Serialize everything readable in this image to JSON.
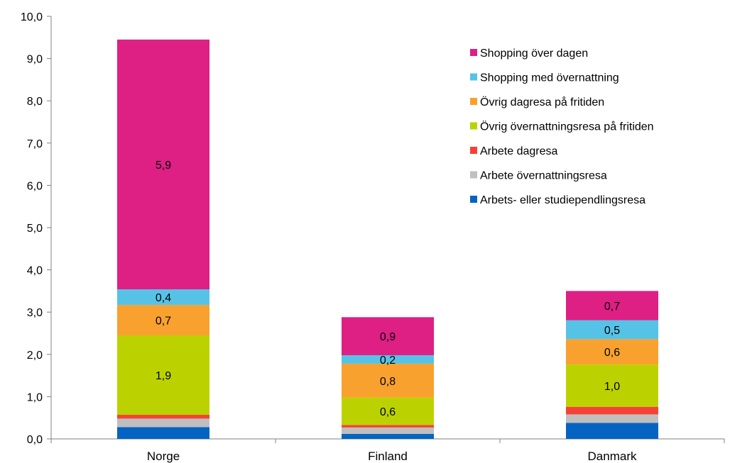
{
  "chart_data": {
    "type": "bar",
    "stacked": true,
    "categories": [
      "Norge",
      "Finland",
      "Danmark"
    ],
    "ylim": [
      0,
      10
    ],
    "yticks": [
      "0,0",
      "1,0",
      "2,0",
      "3,0",
      "4,0",
      "5,0",
      "6,0",
      "7,0",
      "8,0",
      "9,0",
      "10,0"
    ],
    "grid": false,
    "legend_position": "top-right",
    "series": [
      {
        "name": "Arbets- eller studiependlingsresa",
        "color": "#0563c1",
        "values": [
          0.28,
          0.12,
          0.38
        ],
        "labels": [
          "",
          "",
          ""
        ]
      },
      {
        "name": "Arbete övernattningsresa",
        "color": "#bfbfbf",
        "values": [
          0.2,
          0.15,
          0.2
        ],
        "labels": [
          "",
          "",
          ""
        ]
      },
      {
        "name": "Arbete dagresa",
        "color": "#f44336",
        "values": [
          0.09,
          0.06,
          0.18
        ],
        "labels": [
          "",
          "",
          ""
        ]
      },
      {
        "name": "Övrig övernattningsresa på fritiden",
        "color": "#bcd200",
        "values": [
          1.88,
          0.65,
          1.0
        ],
        "labels": [
          "1,9",
          "0,6",
          "1,0"
        ]
      },
      {
        "name": "Övrig dagresa på fritiden",
        "color": "#f9a12e",
        "values": [
          0.72,
          0.8,
          0.6
        ],
        "labels": [
          "0,7",
          "0,8",
          "0,6"
        ]
      },
      {
        "name": "Shopping med övernattning",
        "color": "#56c3e6",
        "values": [
          0.37,
          0.2,
          0.45
        ],
        "labels": [
          "0,4",
          "0,2",
          "0,5"
        ]
      },
      {
        "name": "Shopping över dagen",
        "color": "#de1f84",
        "values": [
          5.91,
          0.9,
          0.69
        ],
        "labels": [
          "5,9",
          "0,9",
          "0,7"
        ]
      }
    ],
    "legend_order": [
      6,
      5,
      4,
      3,
      2,
      1,
      0
    ]
  }
}
